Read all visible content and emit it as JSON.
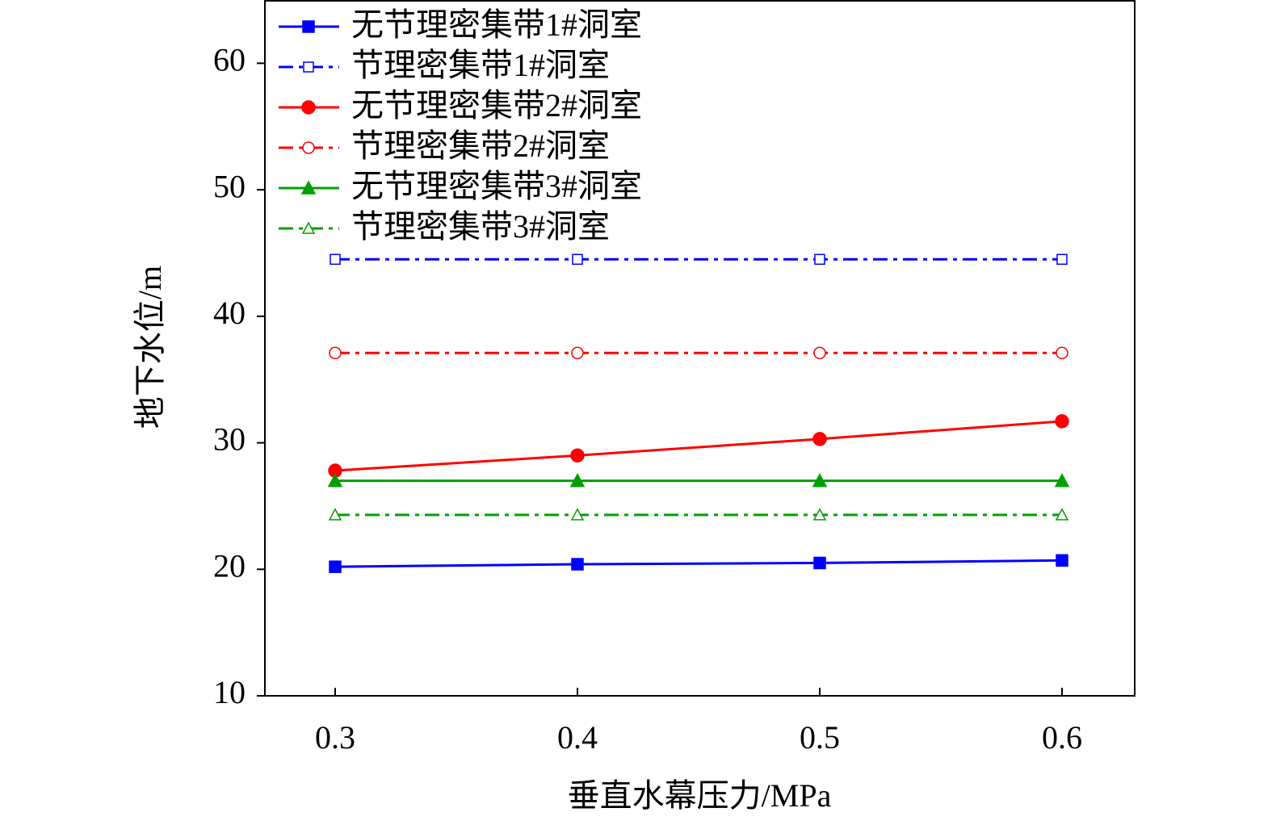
{
  "chart_data": {
    "type": "line",
    "x_label": "垂直水幕压力/MPa",
    "y_label": "地下水位/m",
    "x": [
      0.3,
      0.4,
      0.5,
      0.6
    ],
    "series": [
      {
        "name": "无节理密集带1#洞室",
        "color": "#0000ff",
        "marker": "square",
        "filled": true,
        "dash": "solid",
        "values": [
          20.2,
          20.4,
          20.5,
          20.7
        ]
      },
      {
        "name": "节理密集带1#洞室",
        "color": "#0000ff",
        "marker": "square",
        "filled": false,
        "dash": "dashdot",
        "values": [
          44.5,
          44.5,
          44.5,
          44.5
        ]
      },
      {
        "name": "无节理密集带2#洞室",
        "color": "#ff0000",
        "marker": "circle",
        "filled": true,
        "dash": "solid",
        "values": [
          27.8,
          29.0,
          30.3,
          31.7
        ]
      },
      {
        "name": "节理密集带2#洞室",
        "color": "#ff0000",
        "marker": "circle",
        "filled": false,
        "dash": "dashdot",
        "values": [
          37.1,
          37.1,
          37.1,
          37.1
        ]
      },
      {
        "name": "无节理密集带3#洞室",
        "color": "#00a000",
        "marker": "triangle",
        "filled": true,
        "dash": "solid",
        "values": [
          27.0,
          27.0,
          27.0,
          27.0
        ]
      },
      {
        "name": "节理密集带3#洞室",
        "color": "#00a000",
        "marker": "triangle",
        "filled": false,
        "dash": "dashdot",
        "values": [
          24.3,
          24.3,
          24.3,
          24.3
        ]
      }
    ],
    "xlim": [
      0.271,
      0.63
    ],
    "xticks": [
      0.3,
      0.4,
      0.5,
      0.6
    ],
    "ylim": [
      10,
      65
    ],
    "yticks": [
      10,
      20,
      30,
      40,
      50,
      60
    ],
    "legend": "upper left",
    "grid": false
  }
}
